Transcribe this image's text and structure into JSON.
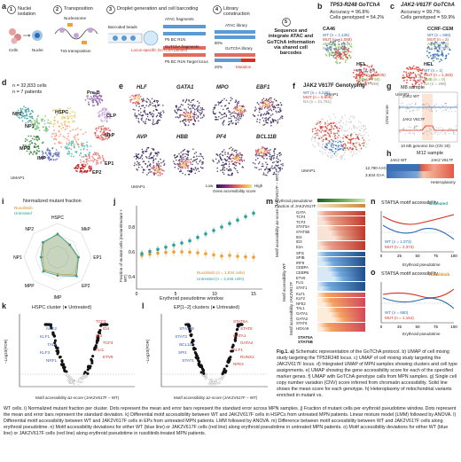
{
  "panels": {
    "a": {
      "letter": "a",
      "steps": [
        "Nuclei isolation",
        "Transposition",
        "Droplet generation and cell barcoding",
        "Library construction",
        "Sequence and integrate ATAC and GoTChA information via shared cell barcodes"
      ],
      "step_numbers": [
        "1",
        "2",
        "3",
        "4",
        "5"
      ],
      "labels": {
        "cells": "Cells",
        "nuclei": "Nuclei",
        "nucleosome": "Nucleosome",
        "tn5": "Tn5 transposition",
        "beads": "Barcoded beads",
        "locus_primer": "Locus-specific GoTChA primers",
        "atac_frag": "ATAC fragments",
        "gotcha_frag": "GoTChA fragments",
        "atac_lib": "ATAC library",
        "gotcha_lib": "GoTChA library",
        "p5": "P5 BC R1N",
        "p5_gotcha": "P5 BC R1N Target locus",
        "mutation": "Mutation",
        "wt": "WT",
        "pct80": "80%",
        "pct20": "20%"
      }
    },
    "b": {
      "letter": "b",
      "title": "TP53-R248 GoTChA",
      "acc": "Accuracy = 96.8%",
      "genotyped": "Cells genotyped = 54.2%",
      "ca46": "CA46",
      "hel": "HEL",
      "ca46_legend": [
        "WT (n = 1,136)",
        "MUT (n = 1,068)",
        "AMB (n = 4,135)",
        "NA (n = 1,041)"
      ],
      "hel_legend": [
        "WT (n = 9)",
        "MUT (n = 1,036)",
        "AMB (n = 50)",
        "NA (n = 838)"
      ],
      "umap1": "UMAP1",
      "umap2": "UMAP2"
    },
    "c": {
      "letter": "c",
      "title": "JAK2-V617F GoTChA",
      "acc": "Accuracy = 99.7%",
      "genotyped": "Cells genotyped = 59.9%",
      "ccrf": "CCRF-CEM",
      "hel": "HEL",
      "ccrf_legend": [
        "WT (n = 598)",
        "MUT (n = 2)",
        "AMB (n = 0)",
        "NA (n = 437)"
      ],
      "hel_legend": [
        "WT (n = 1)",
        "MUT (n = 1,483)",
        "AMB (n = 0)",
        "NA (n = 298)"
      ],
      "umap1": "UMAP1",
      "umap2": "UMAP2"
    },
    "d": {
      "letter": "d",
      "ncells": "n = 32,833 cells",
      "npatients": "n = 7 patients",
      "clusters": [
        "Pre-B",
        "CLP",
        "HSPC",
        "NP1",
        "NP2",
        "MkP",
        "MPP",
        "IMP",
        "EP1",
        "EP2"
      ],
      "umap1": "UMAP1",
      "umap2": "UMAP2"
    },
    "e": {
      "letter": "e",
      "genes": [
        "HLF",
        "GATA1",
        "MPO",
        "EBF1",
        "AVP",
        "HBB",
        "PF4",
        "BCL11B"
      ],
      "low": "Low",
      "high": "High",
      "legend": "Gene accessibility score",
      "umap1": "UMAP1",
      "umap2": "UMAP2"
    },
    "f": {
      "letter": "f",
      "title": "JAK2 V617F Genotyping",
      "legend": [
        "WT (n = 4,246)",
        "MUT (n = 6,806)",
        "NA (n = 21,781)"
      ],
      "umap1": "UMAP1",
      "umap2": "UMAP2"
    },
    "g": {
      "letter": "g",
      "sample": "M8 sample",
      "jak2_wt": "JAK2 WT",
      "jak2_mut": "JAK2 V617F",
      "xlabel": "10 Mb genomic bin (Chr 20)",
      "ylabel": "CNV score"
    },
    "h": {
      "letter": "h",
      "sample": "M12 sample",
      "left": "JAK2 WT",
      "right": "JAK2 V617F",
      "row1": "12,790 A>G",
      "row2": "3,634 G>A",
      "legend": "Heteroplasmy"
    },
    "i": {
      "letter": "i",
      "title": "Normalized mutant fraction",
      "legend": [
        "Ruxolitinib",
        "Untreated"
      ],
      "axes": [
        "HSPC",
        "MkP",
        "EP1",
        "EP2",
        "IMP",
        "MPP",
        "NP1",
        "NP2"
      ],
      "ticks": [
        "0.5",
        "0.75",
        "1"
      ]
    },
    "j": {
      "letter": "j",
      "xlabel": "Erythroid pseudotime window",
      "ylabel": "Fraction of mutant cells (mutant/mutant + WT)",
      "legend": [
        "Ruxolitinib (n = 1,834 cells)",
        "Untreated (n = 3,446 cells)"
      ],
      "xticks": [
        "0",
        "5",
        "10",
        "15"
      ],
      "yticks": [
        "0.4",
        "0.6",
        "0.8"
      ]
    },
    "k": {
      "letter": "k",
      "title": "HSPC cluster (● Untreated)",
      "xlabel": "Motif accessibility Δz-score (JAK2V617F − WT)",
      "ylabel": "−Log10(FDR)",
      "labels_up": [
        "TCF3",
        "ID4",
        "ID3",
        "TCF4",
        "FLI1",
        "ETV6"
      ],
      "labels_dn": [
        "NFE2",
        "KLF1",
        "TAL1",
        "KLF3",
        "NRF1"
      ]
    },
    "l": {
      "letter": "l",
      "title": "EP[1–2] clusters (● Untreated)",
      "xlabel": "Motif accessibility Δz-score (JAK2V617F − WT)",
      "ylabel": "−Log10(FDR)",
      "labels": [
        "STAT5A",
        "STAT5B",
        "STAT3",
        "BCL11A",
        "SPI1",
        "STAT1",
        "STAT6",
        "GATA1",
        "GATA2",
        "KLF1",
        "RUNX1",
        "NFE2"
      ]
    },
    "m": {
      "letter": "m",
      "header1": "Erythroid pseudotime",
      "header2": "Fraction of JAK2V617F cells",
      "rows_top": [
        "GATA",
        "TCF4",
        "TCF3",
        "STAT5A",
        "STAT5B",
        "ID4",
        "ID3",
        "E2A"
      ],
      "rows_mid": [
        "SPI1",
        "SPIB",
        "IRF8",
        "CEBPA",
        "CEBPB",
        "ETV6",
        "FLI1",
        "STAT1"
      ],
      "rows_bot": [
        "KLF1",
        "KLF2",
        "NFE2",
        "TAL1",
        "GATA1",
        "GATA2",
        "STAT6",
        "HOXA9"
      ],
      "side_top": "Motif accessibility Δz-score (JAK2V617F − WT)",
      "side_mid": "Motif accessibility WT",
      "side_bot": "Motif accessibility JAK2V617F",
      "footer": [
        "STAT5A",
        "STAT5B"
      ]
    },
    "n": {
      "letter": "n",
      "title": "STAT5A motif accessibility",
      "tag": "Untreated",
      "legend": [
        "WT (n = 1,073)",
        "MUT (n = 2,373)"
      ],
      "xlabel": "Erythroid pseudotime",
      "ylabel": "z-score",
      "xticks": [
        "0",
        "25",
        "50",
        "75",
        "100"
      ]
    },
    "o": {
      "letter": "o",
      "title": "STAT5A motif accessibility",
      "tag": "Ruxolitinib",
      "legend": [
        "WT (n = 680)",
        "MUT (n = 1,154)"
      ],
      "xlabel": "Erythroid pseudotime",
      "ylabel": "z-score",
      "xticks": [
        "0",
        "25",
        "50",
        "75",
        "100"
      ]
    }
  },
  "caption": {
    "lead": "Fig.1. a)",
    "right_text": "Schematic representation of the GoTChA protocol. b) UMAP of cell mixing study targeting the TP53R248 locus. c) UMAP of cell mixing study targeting the JAK2V617F locus. d) Integrated UMAP of MPN samples showing clusters and cell type assignments. e) UMAP showing the gene accessibility score for each of the specified marker genes. f) UMAP with GoTChA genotype calls from MPN samples. g) Single cell copy number variation (CNV) score inferred from chromatin accessibility. Solid line shows the mean score for each genotype. h) Heteroplasmy of mitochondrial variants enriched in mutant vs.",
    "bottom_text": "WT cells. i) Normalized mutant fraction per cluster. Dots represent the mean and error bars represent the standard error across MPN samples. j) Fraction of mutant cells per erythroid pseudotime window. Dots represent the mean and error bars represent the standard deviation. k) Differential motif accessibility between WT and JAK2V617F cells in HSPCs from untreated MPN patients. Linear mixture model (LMM) followed by ANOVA. l) Differential motif accessibility between WT and JAK2V617F cells in EPs from untreated MPN patients. LMM followed by ANOVA. m) Difference between motif accessibility between WT and JAK2V617F cells along erythroid pseudotime. n) Motif accessibility deviations for either WT (blue line) or JAK2V617F cells (red line) along erythroid pseudotime in untreated MPN patients. o) Motif accessibility deviations for either WT (blue line) or JAK2V617F cells (red line) along erythroid pseudotime in ruxolitinib-treated MPN patients."
  },
  "colors": {
    "wt": "#2d6cb5",
    "mut": "#d7301f",
    "rux": "#f0a033",
    "untreated": "#2aa198",
    "amb": "#8fbc5a",
    "na": "#cccccc"
  }
}
